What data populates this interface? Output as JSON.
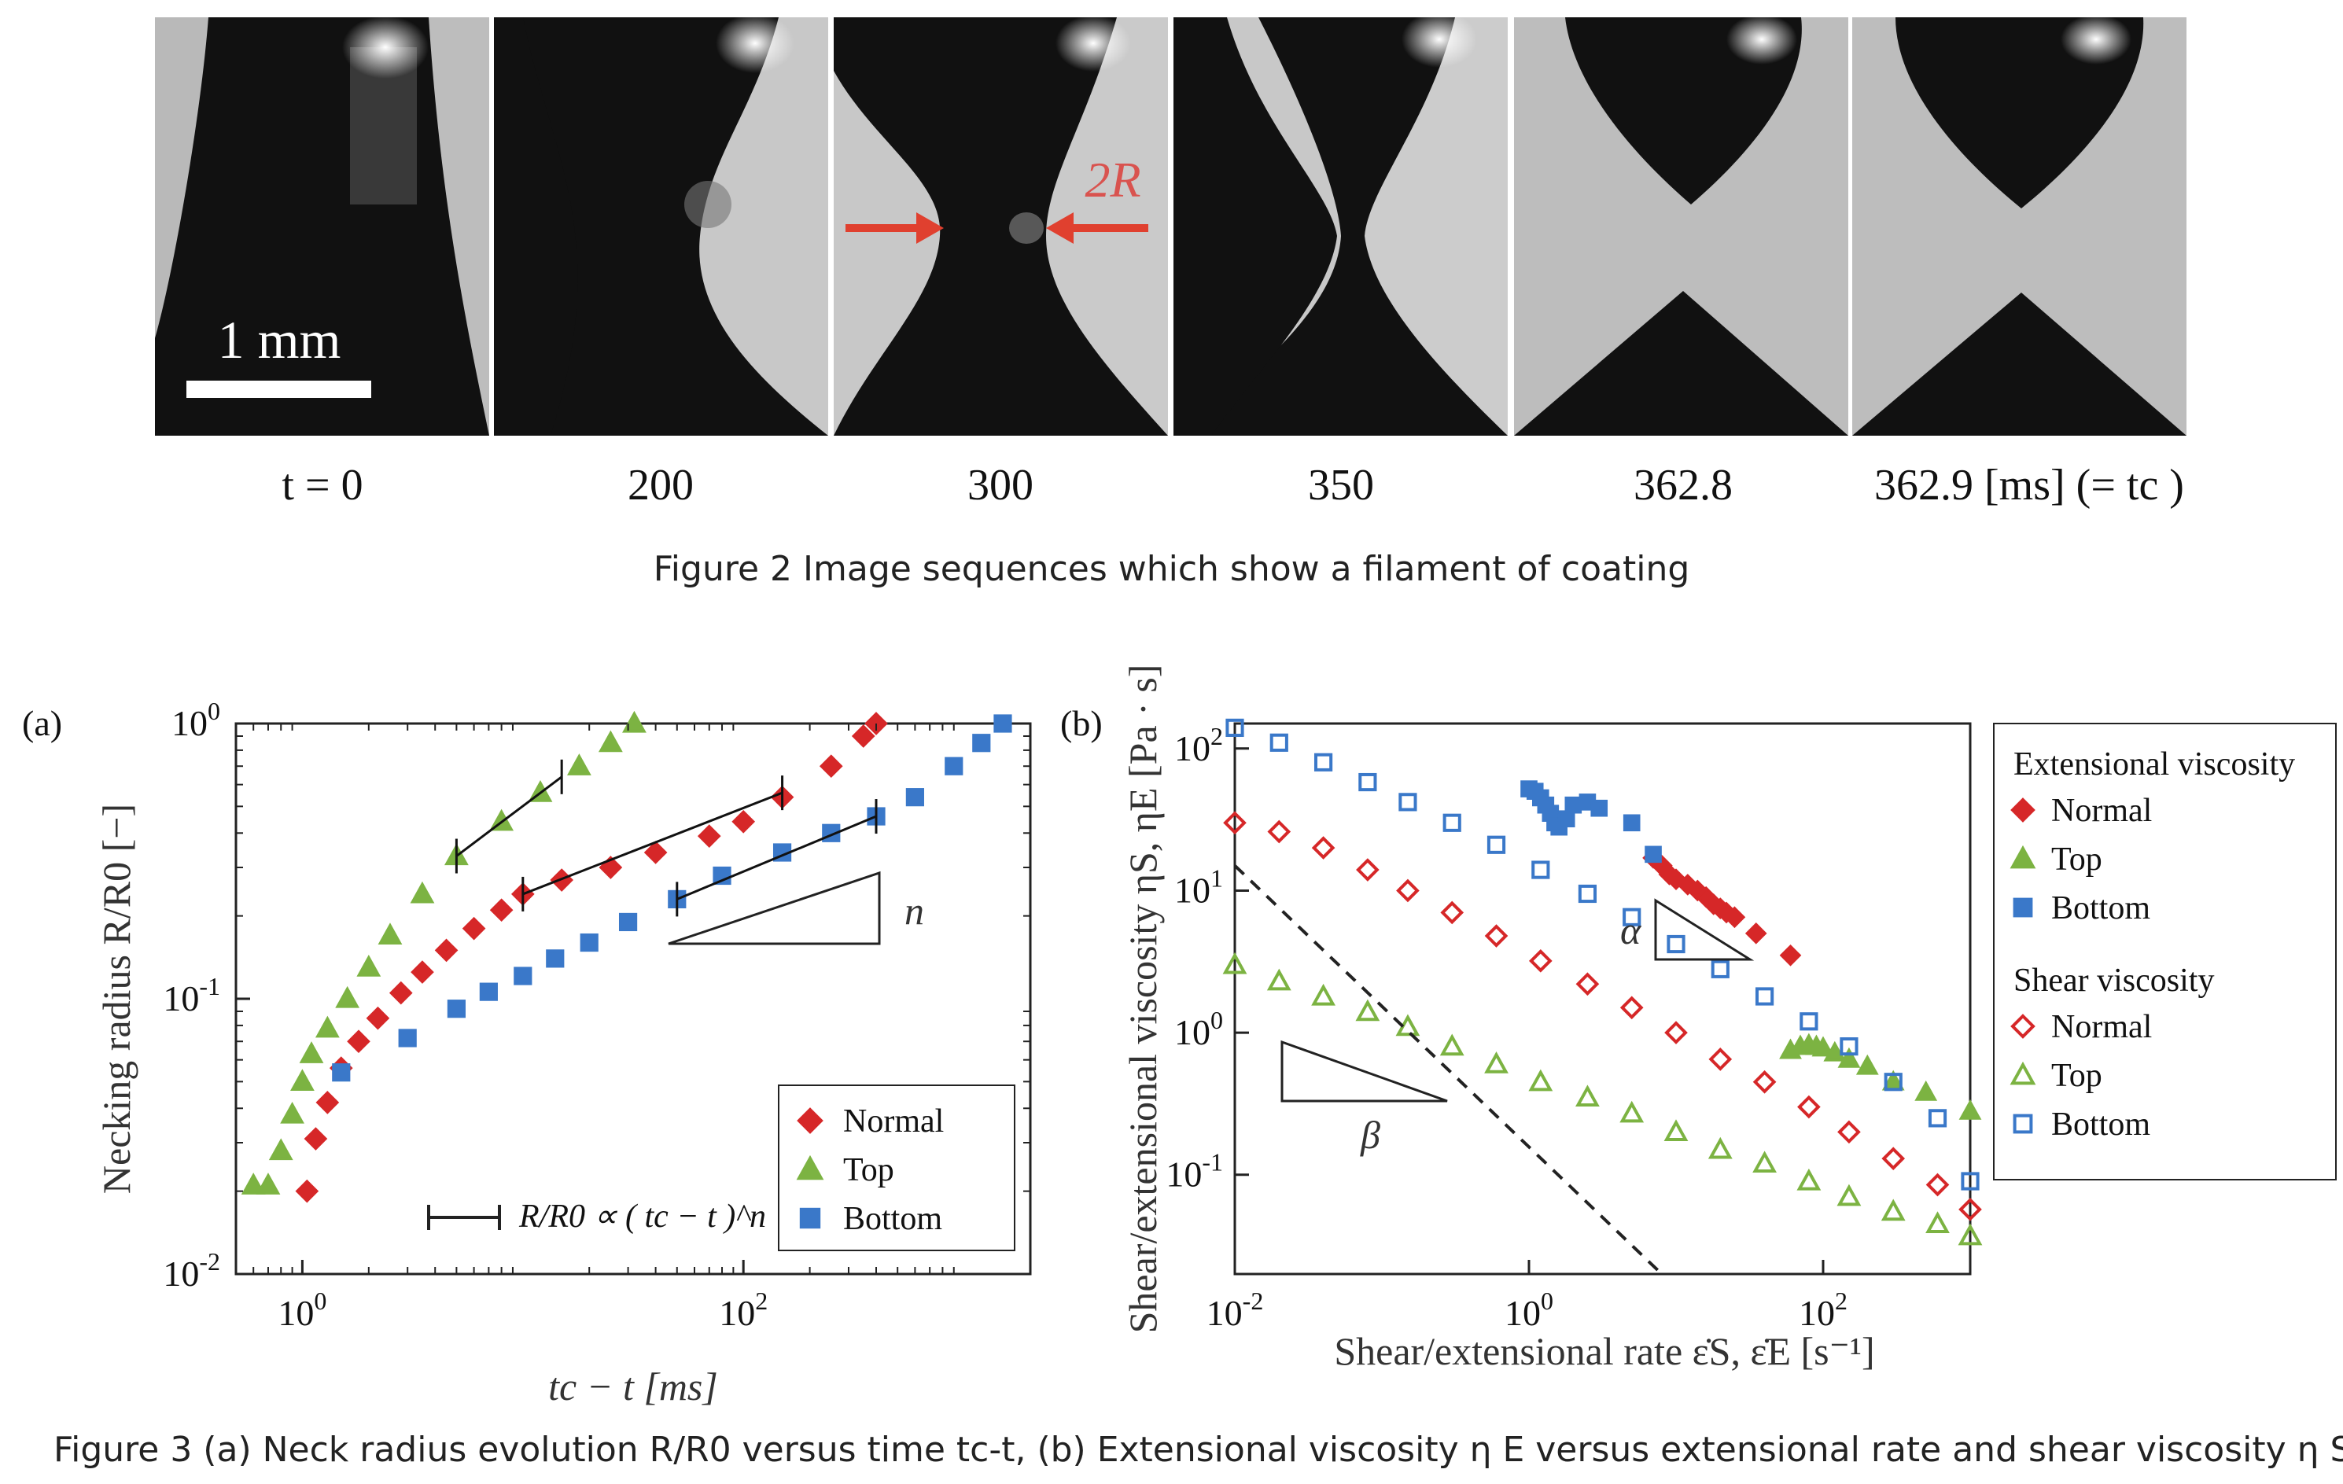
{
  "figure2": {
    "frames": [
      {
        "label": "t = 0"
      },
      {
        "label": "200"
      },
      {
        "label": "300"
      },
      {
        "label": "350"
      },
      {
        "label": "362.8"
      },
      {
        "label": "362.9 [ms] (=  tc )"
      }
    ],
    "scale_bar_label": "1 mm",
    "annotation": "2R",
    "caption": "Figure 2  Image sequences which show a filament of coating"
  },
  "figure3": {
    "caption": "Figure 3  (a) Neck radius evolution R/R0 versus time tc-t, (b) Extensional viscosity  η E versus extensional rate  and shear viscosity  η S"
  },
  "chart_data": [
    {
      "panel_label": "(a)",
      "type": "scatter",
      "xlabel": "tc − t [ms]",
      "ylabel": "Necking radius R/R0 [−]",
      "xscale": "log",
      "yscale": "log",
      "xlim": [
        0.5,
        2000
      ],
      "ylim": [
        0.01,
        1
      ],
      "xticks": [
        "10^0",
        "10^2"
      ],
      "yticks": [
        "10^-2",
        "10^-1",
        "10^0"
      ],
      "slope_label": "n",
      "legend_position": "bottom-right",
      "fit_legend": "R/R0 ∝ ( tc − t )^n",
      "series": [
        {
          "name": "Normal",
          "color": "#d62728",
          "marker": "diamond",
          "points": [
            [
              1.05,
              0.02
            ],
            [
              1.15,
              0.031
            ],
            [
              1.3,
              0.042
            ],
            [
              1.5,
              0.056
            ],
            [
              1.8,
              0.07
            ],
            [
              2.2,
              0.085
            ],
            [
              2.8,
              0.105
            ],
            [
              3.5,
              0.125
            ],
            [
              4.5,
              0.15
            ],
            [
              6,
              0.18
            ],
            [
              8,
              0.21
            ],
            [
              10,
              0.24
            ],
            [
              15,
              0.27
            ],
            [
              25,
              0.3
            ],
            [
              40,
              0.34
            ],
            [
              70,
              0.39
            ],
            [
              100,
              0.44
            ],
            [
              150,
              0.54
            ],
            [
              250,
              0.7
            ],
            [
              350,
              0.9
            ],
            [
              400,
              1.0
            ]
          ]
        },
        {
          "name": "Top",
          "color": "#7cb342",
          "marker": "triangle",
          "points": [
            [
              0.6,
              0.021
            ],
            [
              0.7,
              0.021
            ],
            [
              0.8,
              0.028
            ],
            [
              0.9,
              0.038
            ],
            [
              1.0,
              0.05
            ],
            [
              1.1,
              0.063
            ],
            [
              1.3,
              0.078
            ],
            [
              1.6,
              0.1
            ],
            [
              2.0,
              0.13
            ],
            [
              2.5,
              0.17
            ],
            [
              3.5,
              0.24
            ],
            [
              5,
              0.33
            ],
            [
              8,
              0.44
            ],
            [
              12,
              0.56
            ],
            [
              18,
              0.7
            ],
            [
              25,
              0.85
            ],
            [
              32,
              1.0
            ]
          ]
        },
        {
          "name": "Bottom",
          "color": "#3a78c9",
          "marker": "square",
          "points": [
            [
              1.5,
              0.054
            ],
            [
              3,
              0.072
            ],
            [
              5,
              0.092
            ],
            [
              7,
              0.106
            ],
            [
              10,
              0.121
            ],
            [
              14,
              0.14
            ],
            [
              20,
              0.16
            ],
            [
              30,
              0.19
            ],
            [
              50,
              0.23
            ],
            [
              80,
              0.28
            ],
            [
              150,
              0.34
            ],
            [
              250,
              0.4
            ],
            [
              400,
              0.46
            ],
            [
              600,
              0.54
            ],
            [
              900,
              0.7
            ],
            [
              1200,
              0.85
            ],
            [
              1500,
              1.0
            ]
          ]
        }
      ],
      "fits": [
        {
          "series": "Top",
          "x": [
            5,
            15
          ],
          "y": [
            0.33,
            0.64
          ]
        },
        {
          "series": "Normal",
          "x": [
            10,
            150
          ],
          "y": [
            0.24,
            0.56
          ]
        },
        {
          "series": "Bottom",
          "x": [
            50,
            400
          ],
          "y": [
            0.23,
            0.46
          ]
        }
      ]
    },
    {
      "panel_label": "(b)",
      "type": "scatter",
      "xlabel": "Shear/extensional rate ε̇S, ε̇E [s⁻¹]",
      "ylabel": "Shear/extensional viscosity ηS, ηE [Pa · s]",
      "xscale": "log",
      "yscale": "log",
      "xlim": [
        0.01,
        1000
      ],
      "ylim": [
        0.02,
        150
      ],
      "xticks": [
        "10^-2",
        "10^0",
        "10^2"
      ],
      "yticks": [
        "10^-1",
        "10^0",
        "10^1",
        "10^2"
      ],
      "slope_labels": [
        "α",
        "β"
      ],
      "legend_position": "outside-right",
      "legend_groups": [
        {
          "title": "Extensional viscosity",
          "entries": [
            "Normal",
            "Top",
            "Bottom"
          ]
        },
        {
          "title": "Shear viscosity",
          "entries": [
            "Normal",
            "Top",
            "Bottom"
          ]
        }
      ],
      "series": [
        {
          "name": "Extensional Normal",
          "color": "#d62728",
          "marker": "diamond-filled",
          "points": [
            [
              7,
              17
            ],
            [
              8,
              15
            ],
            [
              9,
              13
            ],
            [
              10,
              12
            ],
            [
              12,
              11
            ],
            [
              14,
              10
            ],
            [
              16,
              9
            ],
            [
              18,
              8
            ],
            [
              20,
              7.5
            ],
            [
              22,
              7
            ],
            [
              25,
              6.5
            ],
            [
              35,
              5
            ],
            [
              60,
              3.5
            ]
          ]
        },
        {
          "name": "Extensional Top",
          "color": "#7cb342",
          "marker": "triangle-filled",
          "points": [
            [
              60,
              0.75
            ],
            [
              70,
              0.8
            ],
            [
              80,
              0.82
            ],
            [
              90,
              0.8
            ],
            [
              100,
              0.78
            ],
            [
              120,
              0.72
            ],
            [
              150,
              0.65
            ],
            [
              200,
              0.58
            ],
            [
              300,
              0.45
            ],
            [
              500,
              0.38
            ],
            [
              1000,
              0.28
            ]
          ]
        },
        {
          "name": "Extensional Bottom",
          "color": "#3a78c9",
          "marker": "square-filled",
          "points": [
            [
              1.0,
              52
            ],
            [
              1.1,
              50
            ],
            [
              1.2,
              45
            ],
            [
              1.3,
              40
            ],
            [
              1.4,
              35
            ],
            [
              1.5,
              30
            ],
            [
              1.6,
              28
            ],
            [
              1.8,
              32
            ],
            [
              2.0,
              40
            ],
            [
              2.5,
              42
            ],
            [
              3,
              38
            ],
            [
              5,
              30
            ],
            [
              7,
              18
            ]
          ]
        },
        {
          "name": "Shear Normal",
          "color": "#d62728",
          "marker": "diamond-open",
          "points": [
            [
              0.01,
              30
            ],
            [
              0.02,
              26
            ],
            [
              0.04,
              20
            ],
            [
              0.08,
              14
            ],
            [
              0.15,
              10
            ],
            [
              0.3,
              7
            ],
            [
              0.6,
              4.8
            ],
            [
              1.2,
              3.2
            ],
            [
              2.5,
              2.2
            ],
            [
              5,
              1.5
            ],
            [
              10,
              1.0
            ],
            [
              20,
              0.65
            ],
            [
              40,
              0.45
            ],
            [
              80,
              0.3
            ],
            [
              150,
              0.2
            ],
            [
              300,
              0.13
            ],
            [
              600,
              0.085
            ],
            [
              1000,
              0.057
            ]
          ]
        },
        {
          "name": "Shear Top",
          "color": "#7cb342",
          "marker": "triangle-open",
          "points": [
            [
              0.01,
              3.0
            ],
            [
              0.02,
              2.3
            ],
            [
              0.04,
              1.8
            ],
            [
              0.08,
              1.4
            ],
            [
              0.15,
              1.1
            ],
            [
              0.3,
              0.8
            ],
            [
              0.6,
              0.6
            ],
            [
              1.2,
              0.45
            ],
            [
              2.5,
              0.35
            ],
            [
              5,
              0.27
            ],
            [
              10,
              0.2
            ],
            [
              20,
              0.15
            ],
            [
              40,
              0.12
            ],
            [
              80,
              0.09
            ],
            [
              150,
              0.07
            ],
            [
              300,
              0.055
            ],
            [
              600,
              0.045
            ],
            [
              1000,
              0.037
            ]
          ]
        },
        {
          "name": "Shear Bottom",
          "color": "#3a78c9",
          "marker": "square-open",
          "points": [
            [
              0.01,
              140
            ],
            [
              0.02,
              110
            ],
            [
              0.04,
              80
            ],
            [
              0.08,
              58
            ],
            [
              0.15,
              42
            ],
            [
              0.3,
              30
            ],
            [
              0.6,
              21
            ],
            [
              1.2,
              14
            ],
            [
              2.5,
              9.5
            ],
            [
              5,
              6.5
            ],
            [
              10,
              4.2
            ],
            [
              20,
              2.8
            ],
            [
              40,
              1.8
            ],
            [
              80,
              1.2
            ],
            [
              150,
              0.8
            ],
            [
              300,
              0.45
            ],
            [
              600,
              0.25
            ],
            [
              1000,
              0.09
            ]
          ]
        }
      ],
      "reference_line": {
        "style": "dashed",
        "x": [
          0.01,
          8
        ],
        "y": [
          15,
          0.02
        ]
      }
    }
  ]
}
